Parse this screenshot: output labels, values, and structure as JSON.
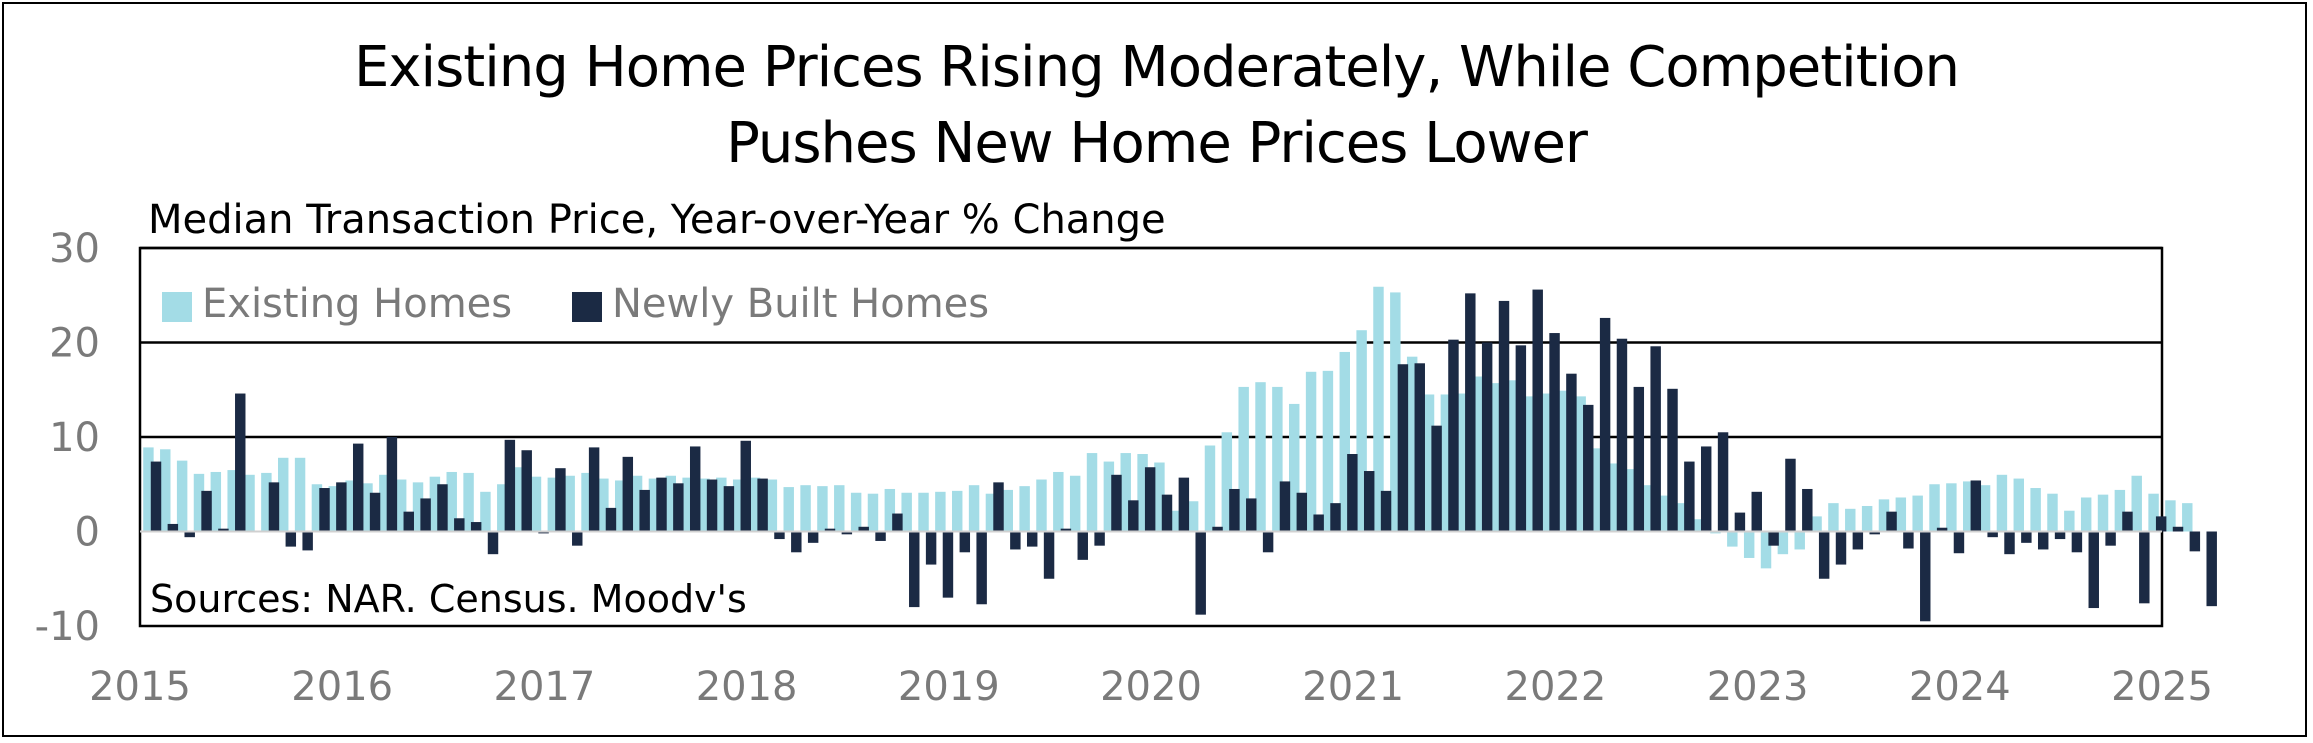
{
  "colors": {
    "existing": "#a3dce6",
    "new": "#1b2a44",
    "axis": "#7a7a7a",
    "border": "#000000"
  },
  "chart_data": {
    "type": "bar",
    "title_lines": [
      "Existing Home Prices Rising Moderately, While Competition",
      "Pushes New Home Prices Lower"
    ],
    "subtitle": "Median Transaction Price, Year-over-Year % Change",
    "source": "Sources: NAR. Census. Moodv's",
    "ylim": [
      -10,
      30
    ],
    "yticks": [
      30,
      20,
      10,
      0,
      -10
    ],
    "gridlines": [
      30,
      20,
      10
    ],
    "xlim": [
      2015,
      2025
    ],
    "xticks": [
      "2015",
      "2016",
      "2017",
      "2018",
      "2019",
      "2020",
      "2021",
      "2022",
      "2023",
      "2024",
      "2025"
    ],
    "legend": {
      "position": "top-left"
    },
    "start": "2015-01",
    "series": [
      {
        "name": "Existing Homes",
        "values": [
          8.9,
          8.7,
          7.5,
          6.1,
          6.3,
          6.5,
          6.0,
          6.2,
          7.8,
          7.8,
          5.0,
          4.8,
          5.4,
          5.1,
          6.0,
          5.5,
          5.2,
          5.8,
          6.3,
          6.2,
          4.2,
          5.0,
          6.8,
          5.8,
          5.7,
          5.9,
          6.2,
          5.6,
          5.4,
          5.9,
          5.6,
          5.9,
          5.7,
          5.6,
          5.7,
          5.5,
          5.7,
          5.5,
          4.7,
          4.9,
          4.8,
          4.9,
          4.1,
          4.0,
          4.5,
          4.1,
          4.1,
          4.2,
          4.3,
          4.9,
          4.0,
          4.4,
          4.8,
          5.5,
          6.3,
          5.9,
          8.3,
          7.4,
          8.3,
          8.2,
          7.3,
          2.2,
          3.2,
          9.1,
          10.5,
          15.3,
          15.8,
          15.3,
          13.5,
          16.9,
          17.0,
          19.0,
          21.3,
          25.9,
          25.3,
          18.5,
          14.5,
          14.5,
          14.6,
          16.4,
          15.7,
          16.0,
          14.3,
          14.6,
          14.9,
          14.3,
          8.8,
          7.2,
          6.6,
          4.9,
          3.8,
          3.0,
          1.3,
          -0.2,
          -1.6,
          -2.8,
          -3.9,
          -2.4,
          -1.9,
          1.6,
          3.0,
          2.4,
          2.7,
          3.4,
          3.6,
          3.8,
          5.0,
          5.1,
          5.3,
          4.9,
          6.0,
          5.6,
          4.6,
          4.0,
          2.2,
          3.6,
          3.9,
          4.4,
          5.9,
          4.0,
          3.3,
          3.0
        ]
      },
      {
        "name": "Newly Built Homes",
        "values": [
          7.4,
          0.8,
          -0.6,
          4.3,
          0.3,
          14.6,
          0.0,
          5.2,
          -1.6,
          -2.0,
          4.6,
          5.2,
          9.3,
          4.1,
          10.0,
          2.1,
          3.5,
          5.0,
          1.4,
          1.0,
          -2.4,
          9.7,
          8.6,
          -0.2,
          6.7,
          -1.5,
          8.9,
          2.5,
          7.9,
          4.4,
          5.7,
          5.1,
          9.0,
          5.5,
          4.8,
          9.6,
          5.6,
          -0.8,
          -2.2,
          -1.2,
          0.3,
          -0.3,
          0.5,
          -1.0,
          1.9,
          -8.0,
          -3.5,
          -7.0,
          -2.2,
          -7.7,
          5.2,
          -1.9,
          -1.6,
          -5.0,
          0.3,
          -3.0,
          -1.5,
          6.0,
          3.3,
          6.8,
          3.9,
          5.7,
          -8.8,
          0.5,
          4.5,
          3.5,
          -2.2,
          5.3,
          4.1,
          1.8,
          3.0,
          8.2,
          6.4,
          4.3,
          17.7,
          17.8,
          11.2,
          20.3,
          25.2,
          20.0,
          24.4,
          19.7,
          25.6,
          21.0,
          16.7,
          13.4,
          22.6,
          20.4,
          15.3,
          19.6,
          15.1,
          7.4,
          9.0,
          10.5,
          2.0,
          4.2,
          -1.5,
          7.7,
          4.5,
          -5.0,
          -3.5,
          -1.9,
          -0.3,
          2.1,
          -1.8,
          -9.5,
          0.4,
          -2.3,
          5.4,
          -0.6,
          -2.4,
          -1.2,
          -1.9,
          -0.8,
          -2.2,
          -8.1,
          -1.5,
          2.1,
          -7.6,
          1.6,
          0.5,
          -2.1,
          -7.9
        ]
      }
    ]
  }
}
